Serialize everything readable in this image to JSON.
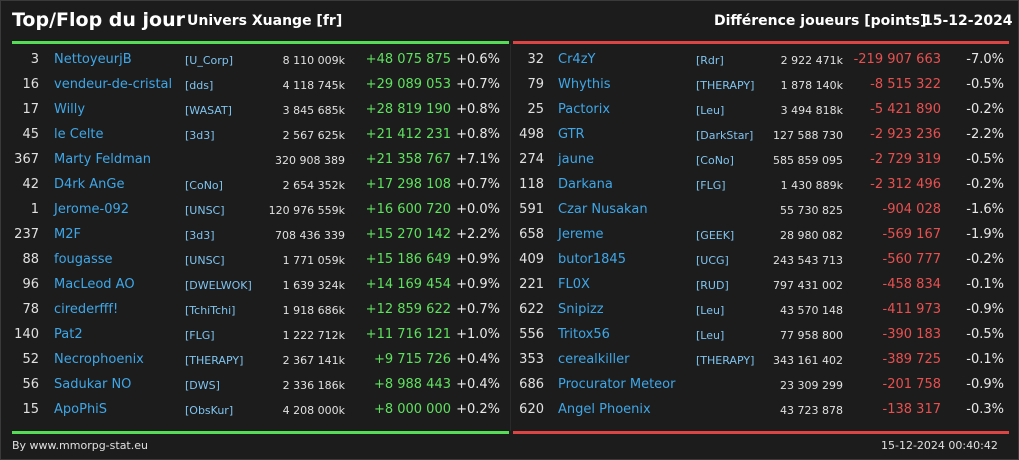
{
  "header": {
    "title": "Top/Flop du jour",
    "universe": "Univers Xuange [fr]",
    "metric": "Différence joueurs [points]",
    "date": "15-12-2024"
  },
  "colors": {
    "top": "#55dd55",
    "flop": "#dd4444",
    "name": "#3fa7e8"
  },
  "top": [
    {
      "rank": "3",
      "name": "NettoyeurjB",
      "guild": "[U_Corp]",
      "score": "8 110 009k",
      "diff": "+48 075 875",
      "pct": "+0.6%"
    },
    {
      "rank": "16",
      "name": "vendeur-de-cristal",
      "guild": "[dds]",
      "score": "4 118 745k",
      "diff": "+29 089 053",
      "pct": "+0.7%"
    },
    {
      "rank": "17",
      "name": "Willy",
      "guild": "[WASAT]",
      "score": "3 845 685k",
      "diff": "+28 819 190",
      "pct": "+0.8%"
    },
    {
      "rank": "45",
      "name": "le Celte",
      "guild": "[3d3]",
      "score": "2 567 625k",
      "diff": "+21 412 231",
      "pct": "+0.8%"
    },
    {
      "rank": "367",
      "name": "Marty Feldman",
      "guild": "",
      "score": "320 908 389",
      "diff": "+21 358 767",
      "pct": "+7.1%"
    },
    {
      "rank": "42",
      "name": "D4rk AnGe",
      "guild": "[CoNo]",
      "score": "2 654 352k",
      "diff": "+17 298 108",
      "pct": "+0.7%"
    },
    {
      "rank": "1",
      "name": "Jerome-092",
      "guild": "[UNSC]",
      "score": "120 976 559k",
      "diff": "+16 600 720",
      "pct": "+0.0%"
    },
    {
      "rank": "237",
      "name": "M2F",
      "guild": "[3d3]",
      "score": "708 436 339",
      "diff": "+15 270 142",
      "pct": "+2.2%"
    },
    {
      "rank": "88",
      "name": "fougasse",
      "guild": "[UNSC]",
      "score": "1 771 059k",
      "diff": "+15 186 649",
      "pct": "+0.9%"
    },
    {
      "rank": "96",
      "name": "MacLeod AO",
      "guild": "[DWELWOK]",
      "score": "1 639 324k",
      "diff": "+14 169 454",
      "pct": "+0.9%"
    },
    {
      "rank": "78",
      "name": "cirederfff!",
      "guild": "[TchiTchi]",
      "score": "1 918 686k",
      "diff": "+12 859 622",
      "pct": "+0.7%"
    },
    {
      "rank": "140",
      "name": "Pat2",
      "guild": "[FLG]",
      "score": "1 222 712k",
      "diff": "+11 716 121",
      "pct": "+1.0%"
    },
    {
      "rank": "52",
      "name": "Necrophoenix",
      "guild": "[THERAPY]",
      "score": "2 367 141k",
      "diff": "+9 715 726",
      "pct": "+0.4%"
    },
    {
      "rank": "56",
      "name": "Sadukar NO",
      "guild": "[DWS]",
      "score": "2 336 186k",
      "diff": "+8 988 443",
      "pct": "+0.4%"
    },
    {
      "rank": "15",
      "name": "ApoPhiS",
      "guild": "[ObsKur]",
      "score": "4 208 000k",
      "diff": "+8 000 000",
      "pct": "+0.2%"
    }
  ],
  "flop": [
    {
      "rank": "32",
      "name": "Cr4zY",
      "guild": "[Rdr]",
      "score": "2 922 471k",
      "diff": "-219 907 663",
      "pct": "-7.0%"
    },
    {
      "rank": "79",
      "name": "Whythis",
      "guild": "[THERAPY]",
      "score": "1 878 140k",
      "diff": "-8 515 322",
      "pct": "-0.5%"
    },
    {
      "rank": "25",
      "name": "Pactorix",
      "guild": "[Leu]",
      "score": "3 494 818k",
      "diff": "-5 421 890",
      "pct": "-0.2%"
    },
    {
      "rank": "498",
      "name": "GTR",
      "guild": "[DarkStar]",
      "score": "127 588 730",
      "diff": "-2 923 236",
      "pct": "-2.2%"
    },
    {
      "rank": "274",
      "name": "jaune",
      "guild": "[CoNo]",
      "score": "585 859 095",
      "diff": "-2 729 319",
      "pct": "-0.5%"
    },
    {
      "rank": "118",
      "name": "Darkana",
      "guild": "[FLG]",
      "score": "1 430 889k",
      "diff": "-2 312 496",
      "pct": "-0.2%"
    },
    {
      "rank": "591",
      "name": "Czar Nusakan",
      "guild": "",
      "score": "55 730 825",
      "diff": "-904 028",
      "pct": "-1.6%"
    },
    {
      "rank": "658",
      "name": "Jereme",
      "guild": "[GEEK]",
      "score": "28 980 082",
      "diff": "-569 167",
      "pct": "-1.9%"
    },
    {
      "rank": "409",
      "name": "butor1845",
      "guild": "[UCG]",
      "score": "243 543 713",
      "diff": "-560 777",
      "pct": "-0.2%"
    },
    {
      "rank": "221",
      "name": "FL0X",
      "guild": "[RUD]",
      "score": "797 431 002",
      "diff": "-458 834",
      "pct": "-0.1%"
    },
    {
      "rank": "622",
      "name": "Snipizz",
      "guild": "[Leu]",
      "score": "43 570 148",
      "diff": "-411 973",
      "pct": "-0.9%"
    },
    {
      "rank": "556",
      "name": "Tritox56",
      "guild": "[Leu]",
      "score": "77 958 800",
      "diff": "-390 183",
      "pct": "-0.5%"
    },
    {
      "rank": "353",
      "name": "cerealkiller",
      "guild": "[THERAPY]",
      "score": "343 161 402",
      "diff": "-389 725",
      "pct": "-0.1%"
    },
    {
      "rank": "686",
      "name": "Procurator Meteor",
      "guild": "",
      "score": "23 309 299",
      "diff": "-201 758",
      "pct": "-0.9%"
    },
    {
      "rank": "620",
      "name": "Angel Phoenix",
      "guild": "",
      "score": "43 723 878",
      "diff": "-138 317",
      "pct": "-0.3%"
    }
  ],
  "footer": {
    "source": "By www.mmorpg-stat.eu",
    "timestamp": "15-12-2024 00:40:42"
  }
}
